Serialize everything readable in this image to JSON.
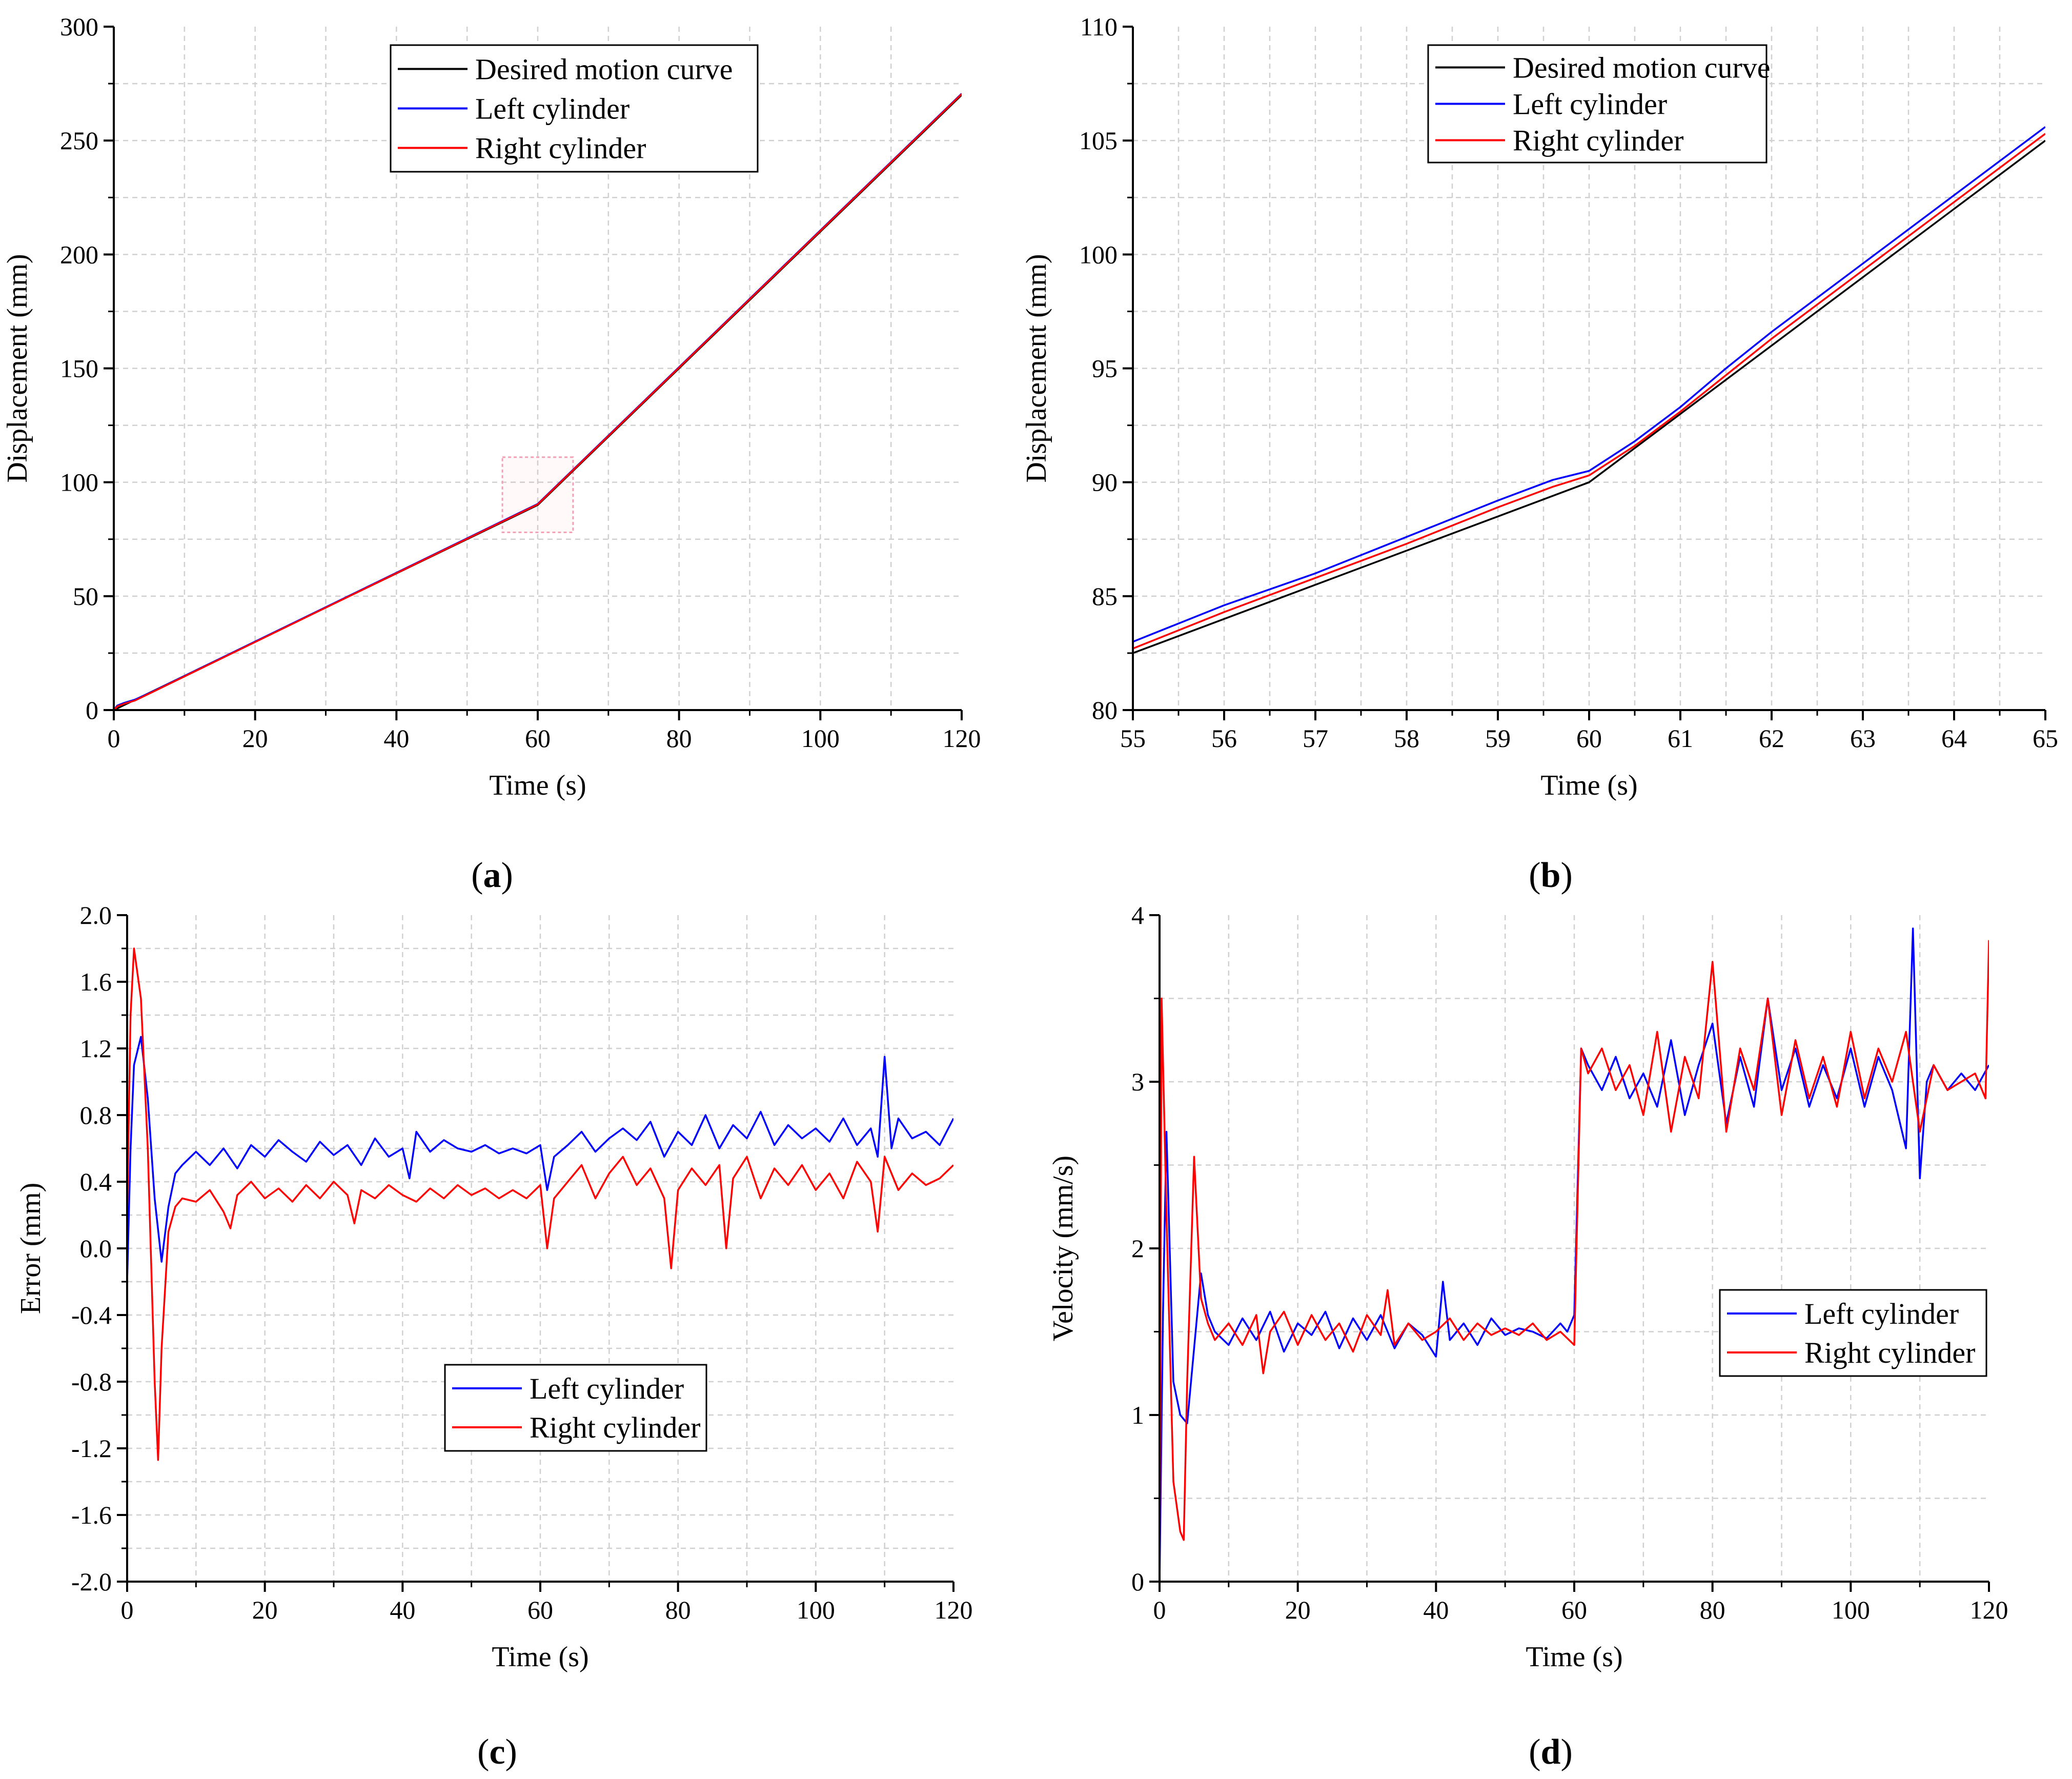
{
  "chart_data": [
    {
      "id": "a",
      "type": "line",
      "caption_letter": "a",
      "xlabel": "Time (s)",
      "ylabel": "Displacement (mm)",
      "xlim": [
        0,
        120
      ],
      "ylim": [
        0,
        300
      ],
      "xticks": [
        0,
        20,
        40,
        60,
        80,
        100,
        120
      ],
      "yticks": [
        0,
        50,
        100,
        150,
        200,
        250,
        300
      ],
      "grid": true,
      "legend_position": "top-center",
      "zoom_region": {
        "x": [
          55,
          65
        ],
        "y": [
          78,
          111
        ]
      },
      "series": [
        {
          "name": "Desired motion curve",
          "color": "#000000",
          "x": [
            0,
            5,
            60,
            120
          ],
          "y": [
            0,
            7.5,
            90,
            270
          ]
        },
        {
          "name": "Left cylinder",
          "color": "#0000ff",
          "x": [
            0,
            0.5,
            1.5,
            3,
            5,
            60,
            120
          ],
          "y": [
            0,
            2.0,
            3.2,
            4.6,
            7.4,
            90.5,
            270.6
          ]
        },
        {
          "name": "Right cylinder",
          "color": "#ff0000",
          "x": [
            0,
            0.5,
            1.5,
            3,
            5,
            60,
            120
          ],
          "y": [
            0,
            1.6,
            2.8,
            4.2,
            7.2,
            90.3,
            270.4
          ]
        }
      ]
    },
    {
      "id": "b",
      "type": "line",
      "caption_letter": "b",
      "xlabel": "Time (s)",
      "ylabel": "Displacement (mm)",
      "xlim": [
        55,
        65
      ],
      "ylim": [
        80,
        110
      ],
      "xticks": [
        55,
        56,
        57,
        58,
        59,
        60,
        61,
        62,
        63,
        64,
        65
      ],
      "yticks": [
        80,
        85,
        90,
        95,
        100,
        105,
        110
      ],
      "grid": true,
      "legend_position": "top-center",
      "series": [
        {
          "name": "Desired motion curve",
          "color": "#000000",
          "x": [
            55,
            60,
            65
          ],
          "y": [
            82.5,
            90,
            105
          ]
        },
        {
          "name": "Left cylinder",
          "color": "#0000ff",
          "x": [
            55,
            56,
            57,
            58,
            59,
            59.6,
            60,
            60.5,
            61,
            61.5,
            62,
            63,
            64,
            65
          ],
          "y": [
            83.0,
            84.6,
            86.0,
            87.6,
            89.2,
            90.1,
            90.5,
            91.8,
            93.3,
            95.0,
            96.6,
            99.6,
            102.6,
            105.6
          ]
        },
        {
          "name": "Right cylinder",
          "color": "#ff0000",
          "x": [
            55,
            56,
            57,
            58,
            59,
            59.6,
            60,
            60.5,
            61,
            61.5,
            62,
            63,
            64,
            65
          ],
          "y": [
            82.7,
            84.3,
            85.8,
            87.3,
            88.9,
            89.8,
            90.3,
            91.6,
            93.1,
            94.7,
            96.3,
            99.3,
            102.3,
            105.3
          ]
        }
      ]
    },
    {
      "id": "c",
      "type": "line",
      "caption_letter": "c",
      "xlabel": "Time (s)",
      "ylabel": "Error (mm)",
      "xlim": [
        0,
        120
      ],
      "ylim": [
        -2.0,
        2.0
      ],
      "xticks": [
        0,
        20,
        40,
        60,
        80,
        100,
        120
      ],
      "yticks": [
        -2.0,
        -1.6,
        -1.2,
        -0.8,
        -0.4,
        0.0,
        0.4,
        0.8,
        1.2,
        1.6,
        2.0
      ],
      "yticklabels": [
        "-2.0",
        "-1.6",
        "-1.2",
        "-0.8",
        "-0.4",
        "0.0",
        "0.4",
        "0.8",
        "1.2",
        "1.6",
        "2.0"
      ],
      "grid": true,
      "legend_position": "lower-center",
      "series": [
        {
          "name": "Left cylinder",
          "color": "#0000ff",
          "x": [
            0,
            0.5,
            1,
            2,
            3,
            4,
            5,
            6,
            7,
            8,
            10,
            12,
            14,
            16,
            18,
            20,
            22,
            24,
            26,
            28,
            30,
            32,
            34,
            36,
            38,
            40,
            41,
            42,
            44,
            46,
            48,
            50,
            52,
            54,
            56,
            58,
            60,
            61,
            62,
            64,
            66,
            68,
            70,
            72,
            74,
            76,
            78,
            80,
            82,
            84,
            86,
            88,
            90,
            92,
            94,
            96,
            98,
            100,
            102,
            104,
            106,
            108,
            109,
            110,
            111,
            112,
            114,
            116,
            118,
            120
          ],
          "y": [
            -0.2,
            0.6,
            1.1,
            1.27,
            0.9,
            0.3,
            -0.08,
            0.25,
            0.45,
            0.5,
            0.58,
            0.5,
            0.6,
            0.48,
            0.62,
            0.55,
            0.65,
            0.58,
            0.52,
            0.64,
            0.56,
            0.62,
            0.5,
            0.66,
            0.55,
            0.6,
            0.42,
            0.7,
            0.58,
            0.65,
            0.6,
            0.58,
            0.62,
            0.57,
            0.6,
            0.57,
            0.62,
            0.35,
            0.55,
            0.62,
            0.7,
            0.58,
            0.66,
            0.72,
            0.65,
            0.76,
            0.55,
            0.7,
            0.62,
            0.8,
            0.6,
            0.74,
            0.66,
            0.82,
            0.62,
            0.74,
            0.66,
            0.72,
            0.64,
            0.78,
            0.62,
            0.72,
            0.55,
            1.15,
            0.6,
            0.78,
            0.66,
            0.7,
            0.62,
            0.78
          ]
        },
        {
          "name": "Right cylinder",
          "color": "#ff0000",
          "x": [
            0,
            0.5,
            1,
            2,
            3,
            4,
            4.5,
            5,
            6,
            7,
            8,
            10,
            12,
            14,
            15,
            16,
            18,
            20,
            22,
            24,
            26,
            28,
            30,
            32,
            33,
            34,
            36,
            38,
            40,
            42,
            44,
            46,
            48,
            50,
            52,
            54,
            56,
            58,
            60,
            61,
            62,
            64,
            66,
            68,
            70,
            72,
            74,
            76,
            78,
            79,
            80,
            82,
            84,
            86,
            87,
            88,
            90,
            92,
            94,
            96,
            98,
            100,
            102,
            104,
            106,
            108,
            109,
            110,
            112,
            114,
            116,
            118,
            120
          ],
          "y": [
            0.2,
            1.4,
            1.8,
            1.5,
            0.6,
            -0.8,
            -1.27,
            -0.6,
            0.1,
            0.25,
            0.3,
            0.28,
            0.35,
            0.22,
            0.12,
            0.32,
            0.4,
            0.3,
            0.36,
            0.28,
            0.38,
            0.3,
            0.4,
            0.32,
            0.15,
            0.35,
            0.3,
            0.38,
            0.32,
            0.28,
            0.36,
            0.3,
            0.38,
            0.32,
            0.36,
            0.3,
            0.35,
            0.3,
            0.38,
            0.0,
            0.3,
            0.4,
            0.5,
            0.3,
            0.45,
            0.55,
            0.38,
            0.48,
            0.3,
            -0.12,
            0.35,
            0.48,
            0.38,
            0.5,
            0.0,
            0.42,
            0.55,
            0.3,
            0.48,
            0.38,
            0.5,
            0.35,
            0.45,
            0.3,
            0.52,
            0.4,
            0.1,
            0.55,
            0.35,
            0.45,
            0.38,
            0.42,
            0.5
          ]
        }
      ]
    },
    {
      "id": "d",
      "type": "line",
      "caption_letter": "d",
      "xlabel": "Time (s)",
      "ylabel": "Velocity (mm/s)",
      "xlim": [
        0,
        120
      ],
      "ylim": [
        0,
        4
      ],
      "xticks": [
        0,
        20,
        40,
        60,
        80,
        100,
        120
      ],
      "yticks": [
        0,
        1,
        2,
        3,
        4
      ],
      "grid": true,
      "legend_position": "middle-right",
      "series": [
        {
          "name": "Left cylinder",
          "color": "#0000ff",
          "x": [
            0,
            0.5,
            1,
            2,
            3,
            4,
            5,
            6,
            7,
            8,
            10,
            12,
            14,
            16,
            18,
            20,
            22,
            24,
            26,
            28,
            30,
            32,
            34,
            36,
            38,
            40,
            41,
            42,
            44,
            46,
            48,
            50,
            52,
            54,
            56,
            58,
            59,
            60,
            61,
            62,
            64,
            66,
            68,
            70,
            72,
            74,
            76,
            78,
            80,
            82,
            84,
            86,
            88,
            90,
            92,
            94,
            96,
            98,
            100,
            102,
            104,
            106,
            108,
            109,
            110,
            111,
            112,
            114,
            116,
            118,
            120
          ],
          "y": [
            0,
            1.6,
            2.7,
            1.2,
            1.0,
            0.95,
            1.4,
            1.85,
            1.6,
            1.5,
            1.42,
            1.58,
            1.45,
            1.62,
            1.38,
            1.55,
            1.48,
            1.62,
            1.4,
            1.58,
            1.45,
            1.6,
            1.4,
            1.55,
            1.48,
            1.35,
            1.8,
            1.45,
            1.55,
            1.42,
            1.58,
            1.48,
            1.52,
            1.5,
            1.46,
            1.55,
            1.5,
            1.6,
            3.2,
            3.1,
            2.95,
            3.15,
            2.9,
            3.05,
            2.85,
            3.25,
            2.8,
            3.1,
            3.35,
            2.75,
            3.15,
            2.85,
            3.5,
            2.95,
            3.2,
            2.85,
            3.1,
            2.9,
            3.2,
            2.85,
            3.15,
            2.95,
            2.6,
            3.92,
            2.42,
            3.0,
            3.1,
            2.95,
            3.05,
            2.95,
            3.1
          ]
        },
        {
          "name": "Right cylinder",
          "color": "#ff0000",
          "x": [
            0,
            0.3,
            1,
            2,
            3,
            3.5,
            4,
            5,
            6,
            7,
            8,
            10,
            12,
            14,
            15,
            16,
            18,
            20,
            22,
            24,
            26,
            28,
            30,
            32,
            33,
            34,
            36,
            38,
            40,
            42,
            44,
            46,
            48,
            50,
            52,
            54,
            56,
            58,
            60,
            61,
            62,
            64,
            66,
            68,
            70,
            72,
            74,
            76,
            78,
            80,
            82,
            84,
            86,
            88,
            90,
            92,
            94,
            96,
            98,
            100,
            102,
            104,
            106,
            108,
            110,
            112,
            114,
            116,
            118,
            119.5,
            120
          ],
          "y": [
            0,
            3.5,
            2.2,
            0.6,
            0.3,
            0.25,
            1.2,
            2.55,
            1.7,
            1.55,
            1.45,
            1.55,
            1.42,
            1.6,
            1.25,
            1.5,
            1.62,
            1.42,
            1.6,
            1.45,
            1.55,
            1.38,
            1.6,
            1.48,
            1.75,
            1.42,
            1.55,
            1.45,
            1.5,
            1.58,
            1.45,
            1.55,
            1.48,
            1.52,
            1.48,
            1.55,
            1.45,
            1.5,
            1.42,
            3.2,
            3.05,
            3.2,
            2.95,
            3.1,
            2.8,
            3.3,
            2.7,
            3.15,
            2.9,
            3.72,
            2.7,
            3.2,
            2.95,
            3.5,
            2.8,
            3.25,
            2.9,
            3.15,
            2.85,
            3.3,
            2.9,
            3.2,
            3.0,
            3.3,
            2.7,
            3.1,
            2.95,
            3.0,
            3.05,
            2.9,
            3.85
          ]
        }
      ]
    }
  ]
}
